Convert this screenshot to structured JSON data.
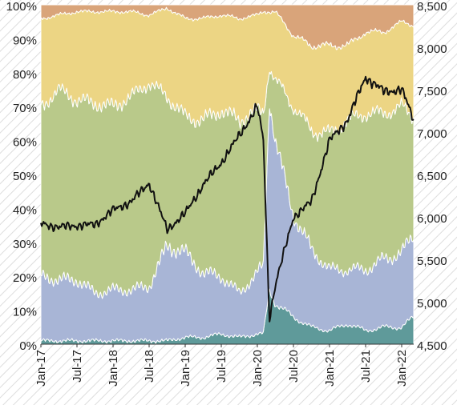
{
  "chart_data": {
    "type": "area",
    "stacking": "percent",
    "grid": false,
    "legend": "none",
    "x_tick_labels": [
      "Jan-17",
      "Jul-17",
      "Jan-18",
      "Jul-18",
      "Jan-19",
      "Jul-19",
      "Jan-20",
      "Jul-20",
      "Jan-21",
      "Jul-21",
      "Jan-22"
    ],
    "left_axis": {
      "ylim": [
        0,
        100
      ],
      "ticks": [
        0,
        10,
        20,
        30,
        40,
        50,
        60,
        70,
        80,
        90,
        100
      ],
      "tick_labels": [
        "0%",
        "10%",
        "20%",
        "30%",
        "40%",
        "50%",
        "60%",
        "70%",
        "80%",
        "90%",
        "100%"
      ]
    },
    "right_axis": {
      "ylim": [
        4500,
        8500
      ],
      "ticks": [
        4500,
        5000,
        5500,
        6000,
        6500,
        7000,
        7500,
        8000,
        8500
      ],
      "tick_labels": [
        "4,500",
        "5,000",
        "5,500",
        "6,000",
        "6,500",
        "7,000",
        "7,500",
        "8,000",
        "8,500"
      ]
    },
    "x": [
      "2017-01",
      "2017-04",
      "2017-07",
      "2017-10",
      "2018-01",
      "2018-04",
      "2018-07",
      "2018-10",
      "2019-01",
      "2019-04",
      "2019-07",
      "2019-10",
      "2020-01",
      "2020-02",
      "2020-03",
      "2020-04",
      "2020-07",
      "2020-10",
      "2021-01",
      "2021-04",
      "2021-07",
      "2021-10",
      "2022-01",
      "2022-03"
    ],
    "series": [
      {
        "axis": "left",
        "color": "#5f9a9a",
        "values": [
          1,
          1,
          1,
          1,
          1,
          1,
          1,
          1,
          2,
          2,
          3,
          2,
          3,
          3,
          16,
          12,
          8,
          5,
          4,
          6,
          4,
          5,
          5,
          8
        ]
      },
      {
        "axis": "left",
        "color": "#a8b5d6",
        "values": [
          19,
          18,
          18,
          14,
          15,
          15,
          16,
          28,
          25,
          19,
          17,
          13,
          18,
          20,
          56,
          48,
          30,
          23,
          18,
          16,
          18,
          20,
          22,
          24
        ]
      },
      {
        "axis": "left",
        "color": "#b9c98a",
        "values": [
          50,
          56,
          53,
          56,
          54,
          57,
          60,
          44,
          40,
          45,
          49,
          51,
          48,
          45,
          10,
          18,
          32,
          35,
          40,
          44,
          46,
          43,
          43,
          35
        ]
      },
      {
        "axis": "left",
        "color": "#ecd584",
        "values": [
          26,
          22,
          26,
          27,
          28,
          25,
          20,
          26,
          29,
          30,
          28,
          30,
          28,
          30,
          16,
          20,
          21,
          25,
          26,
          22,
          24,
          24,
          25,
          27
        ]
      },
      {
        "axis": "left",
        "color": "#d9a47a",
        "values": [
          4,
          3,
          2,
          2,
          2,
          2,
          3,
          1,
          4,
          4,
          3,
          4,
          3,
          2,
          2,
          2,
          9,
          12,
          12,
          12,
          8,
          8,
          5,
          6
        ]
      },
      {
        "axis": "right",
        "type": "line",
        "color": "#111111",
        "values": [
          5920,
          5880,
          5900,
          5910,
          6080,
          6180,
          6400,
          5850,
          6040,
          6380,
          6640,
          6960,
          7300,
          6900,
          4800,
          5200,
          6000,
          6180,
          6900,
          7140,
          7650,
          7480,
          7500,
          7150
        ]
      }
    ]
  }
}
